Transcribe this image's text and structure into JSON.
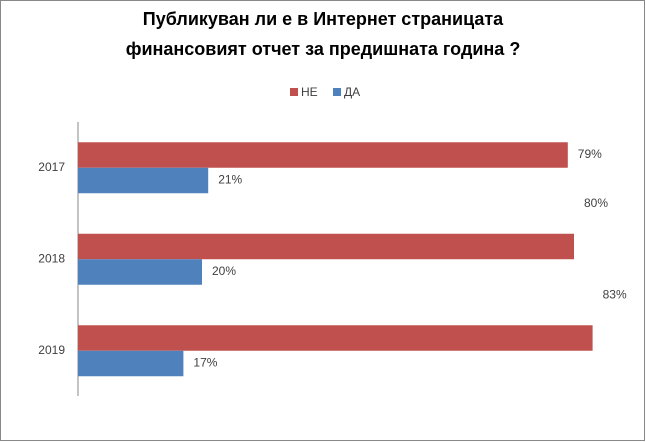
{
  "chart_data": {
    "type": "bar",
    "orientation": "horizontal",
    "title": [
      "Публикуван ли е в Интернет страницата",
      "финансовият отчет за предишната година ?"
    ],
    "categories": [
      "2017",
      "2018",
      "2019"
    ],
    "series": [
      {
        "name": "НЕ",
        "color": "#c0504d",
        "values": [
          79,
          80,
          83
        ],
        "value_labels": [
          "79%",
          "80%",
          "83%"
        ]
      },
      {
        "name": "ДА",
        "color": "#4f81bd",
        "values": [
          21,
          20,
          17
        ],
        "value_labels": [
          "21%",
          "20%",
          "17%"
        ]
      }
    ],
    "xlim": [
      0,
      90
    ],
    "legend": "top"
  }
}
